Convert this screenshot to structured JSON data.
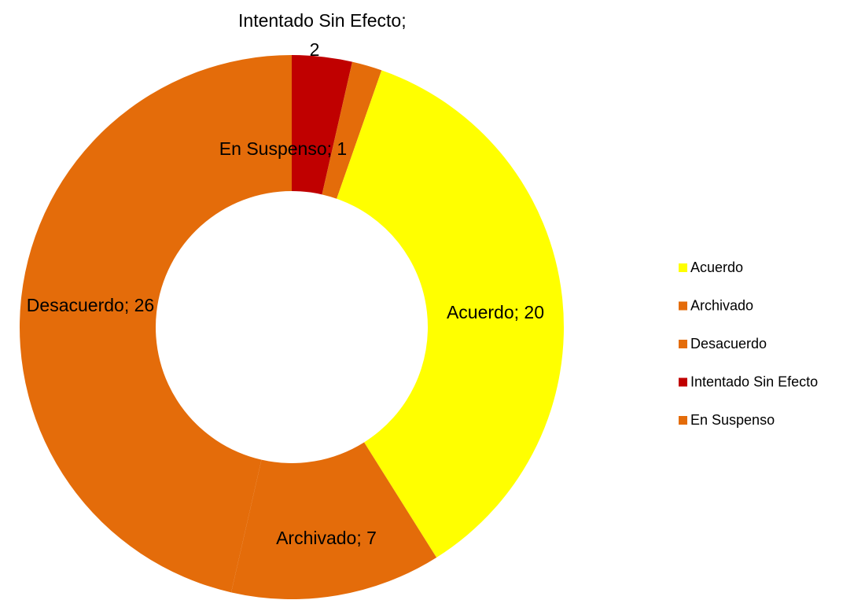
{
  "chart_data": {
    "type": "donut",
    "categories": [
      "Acuerdo",
      "Archivado",
      "Desacuerdo",
      "Intentado Sin Efecto",
      "En Suspenso"
    ],
    "values": [
      20,
      7,
      26,
      2,
      1
    ],
    "colors": [
      "#ffff00",
      "#e46c0a",
      "#e46c0a",
      "#c00000",
      "#e46c0a"
    ],
    "label_separator": "; ",
    "legend": "right"
  }
}
